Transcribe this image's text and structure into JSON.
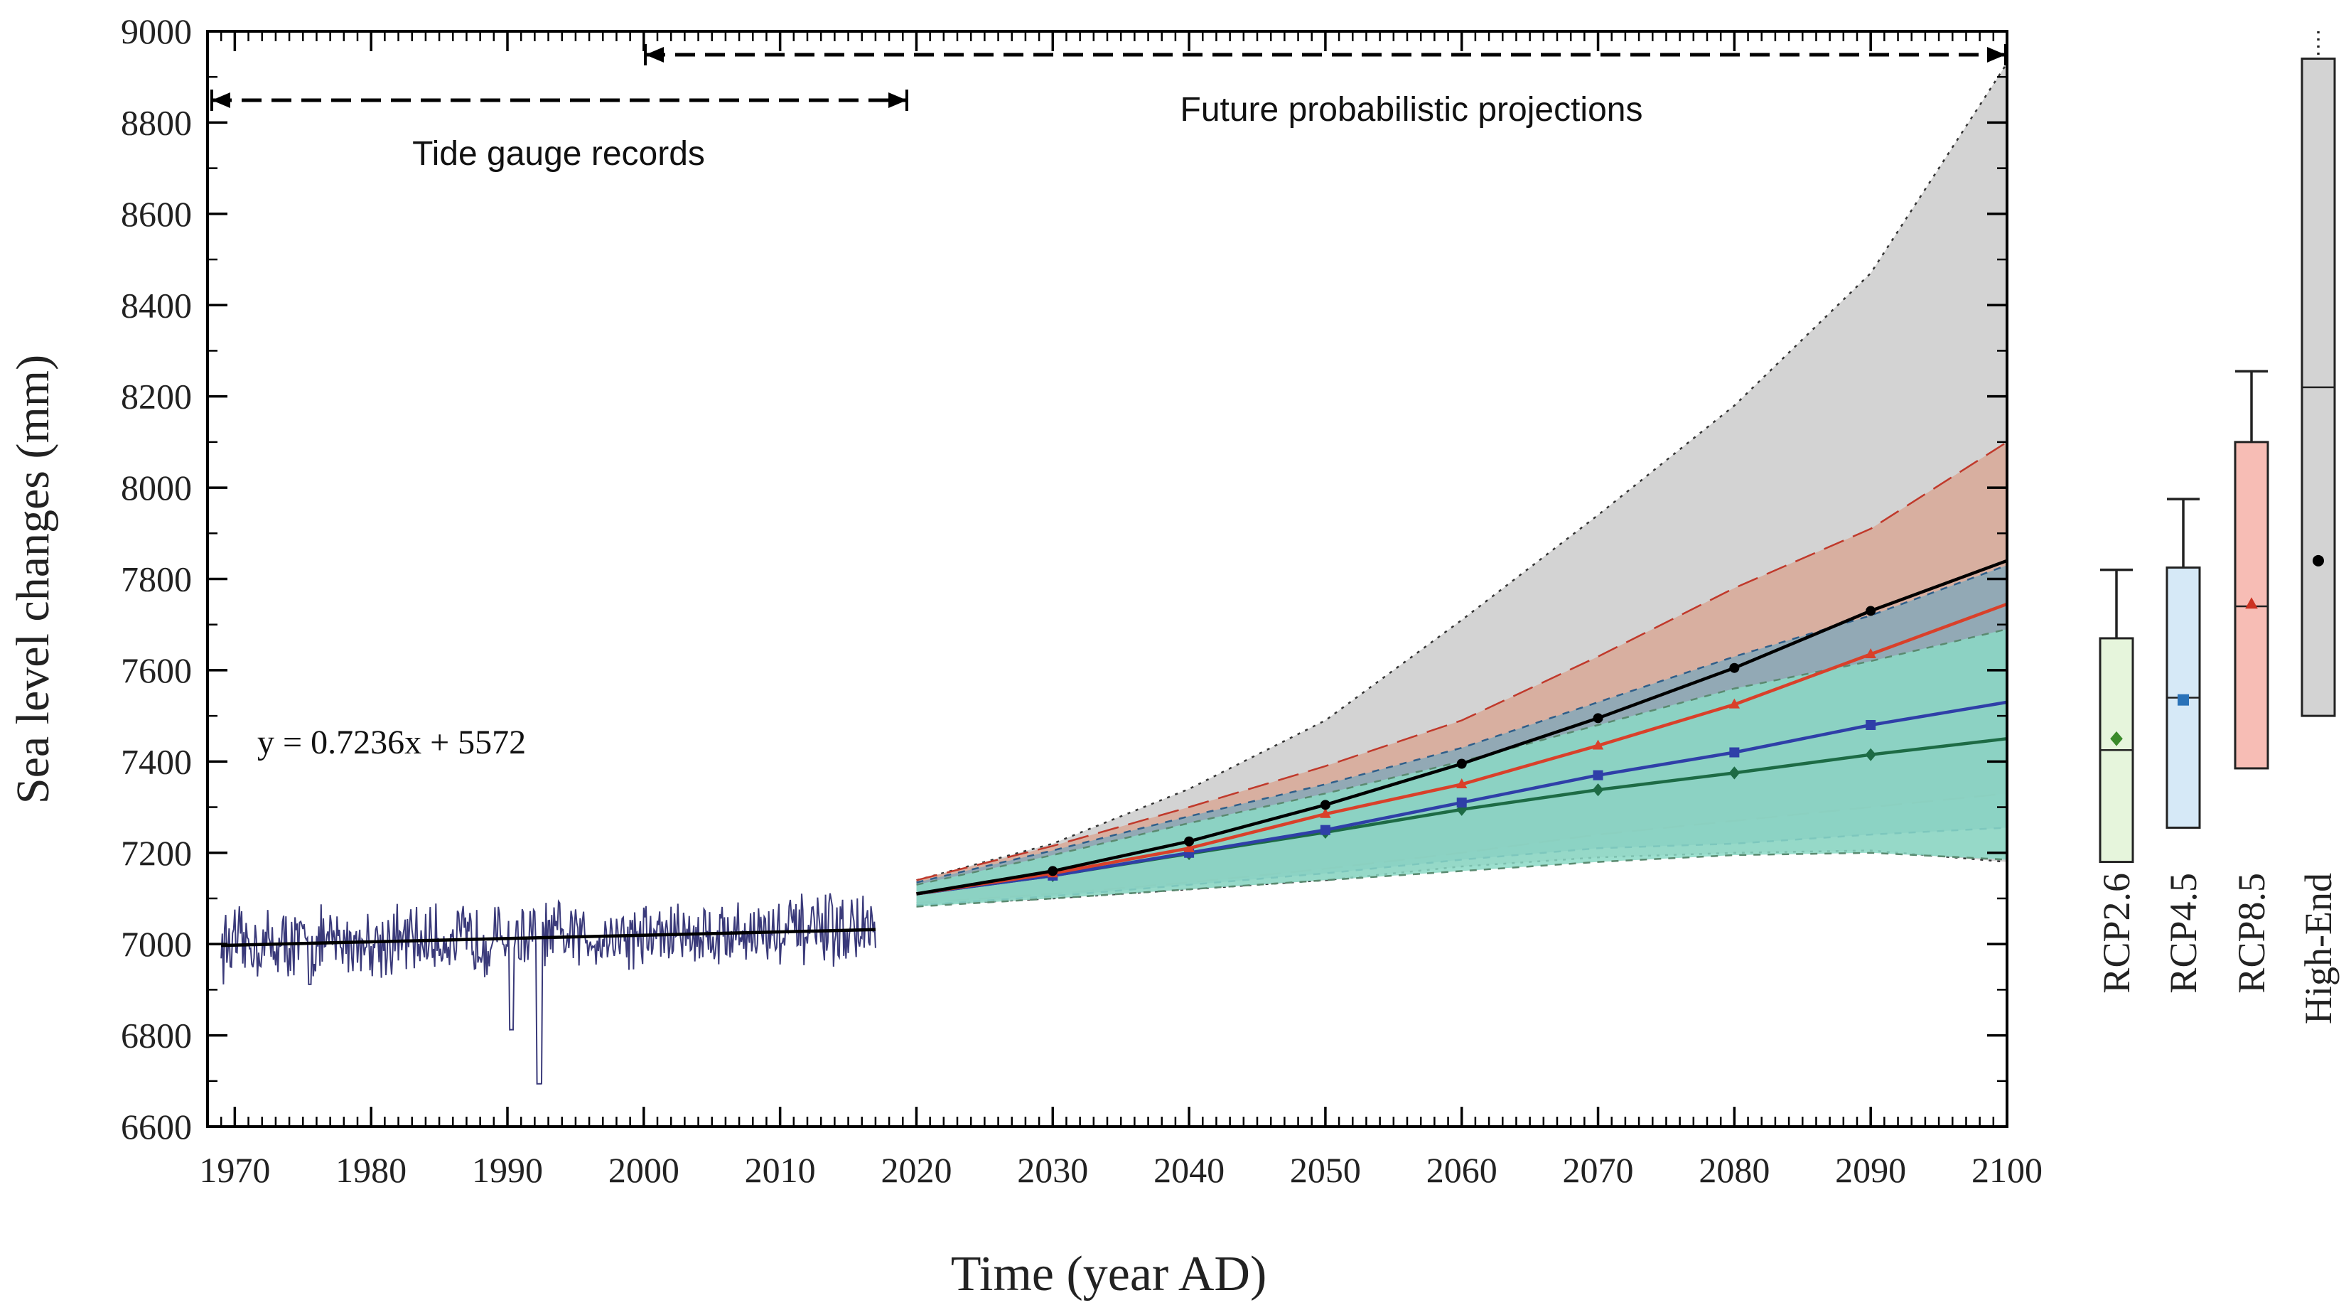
{
  "chart_data": {
    "type": "line",
    "title": "",
    "xlabel": "Time (year AD)",
    "ylabel": "Sea level changes (mm)",
    "xlim": [
      1968,
      2100
    ],
    "ylim": [
      6600,
      9000
    ],
    "xticks": [
      1970,
      1980,
      1990,
      2000,
      2010,
      2020,
      2030,
      2040,
      2050,
      2060,
      2070,
      2080,
      2090,
      2100
    ],
    "yticks": [
      6600,
      6800,
      7000,
      7200,
      7400,
      7600,
      7800,
      8000,
      8200,
      8400,
      8600,
      8800,
      9000
    ],
    "annotations": {
      "tide_gauge": "Tide gauge records",
      "future": "Future probabilistic projections",
      "equation": "y = 0.7236x + 5572"
    },
    "tide_gauge_trend": {
      "slope": 0.7236,
      "intercept_at_1969": 6997,
      "x_range": [
        1969,
        2017
      ]
    },
    "projection_years": [
      2020,
      2030,
      2040,
      2050,
      2060,
      2070,
      2080,
      2090,
      2100
    ],
    "series": [
      {
        "name": "High-End",
        "color": "#000000",
        "values": [
          7110,
          7160,
          7225,
          7305,
          7395,
          7495,
          7605,
          7730,
          7840
        ]
      },
      {
        "name": "RCP8.5",
        "color": "#d9402a",
        "values": [
          7110,
          7155,
          7210,
          7285,
          7350,
          7435,
          7525,
          7635,
          7745
        ]
      },
      {
        "name": "RCP4.5",
        "color": "#2f3fa8",
        "values": [
          7110,
          7150,
          7200,
          7250,
          7310,
          7370,
          7420,
          7480,
          7530
        ]
      },
      {
        "name": "RCP2.6",
        "color": "#1d6b45",
        "values": [
          7110,
          7150,
          7198,
          7245,
          7295,
          7338,
          7375,
          7415,
          7450
        ]
      }
    ],
    "bands": [
      {
        "name": "High-End range",
        "fill": "#d3d3d3",
        "upper": [
          7140,
          7220,
          7340,
          7490,
          7710,
          7940,
          8180,
          8470,
          8930
        ],
        "lower": [
          7085,
          7100,
          7120,
          7140,
          7170,
          7190,
          7200,
          7205,
          7180
        ]
      },
      {
        "name": "RCP8.5 range",
        "fill": "#d8a897",
        "upper": [
          7140,
          7215,
          7300,
          7390,
          7490,
          7630,
          7780,
          7910,
          8100
        ],
        "lower": [
          7090,
          7110,
          7135,
          7165,
          7200,
          7240,
          7270,
          7300,
          7330
        ]
      },
      {
        "name": "RCP4.5 range",
        "fill": "#86a8b8",
        "upper": [
          7135,
          7205,
          7280,
          7350,
          7430,
          7530,
          7630,
          7720,
          7830
        ],
        "lower": [
          7085,
          7105,
          7130,
          7155,
          7185,
          7210,
          7220,
          7240,
          7255
        ]
      },
      {
        "name": "RCP2.6 range",
        "fill": "#8bd9c5",
        "upper": [
          7130,
          7195,
          7265,
          7330,
          7400,
          7480,
          7560,
          7620,
          7690
        ],
        "lower": [
          7082,
          7100,
          7120,
          7140,
          7160,
          7180,
          7195,
          7200,
          7185
        ]
      }
    ],
    "boxplots": [
      {
        "name": "RCP2.6",
        "color": "#3a8a2a",
        "fill": "#e6f5dc",
        "marker": "diamond",
        "low": 7180,
        "q1": 7180,
        "median": 7425,
        "q3": 7670,
        "high": 7820,
        "mean": 7450
      },
      {
        "name": "RCP4.5",
        "color": "#2a72b8",
        "fill": "#d6e9f7",
        "marker": "square",
        "low": 7255,
        "q1": 7255,
        "median": 7540,
        "q3": 7825,
        "high": 7975,
        "mean": 7535
      },
      {
        "name": "RCP8.5",
        "color": "#cc3322",
        "fill": "#f7bdb5",
        "marker": "triangle",
        "low": 7385,
        "q1": 7385,
        "median": 7740,
        "q3": 8100,
        "high": 8255,
        "mean": 7745
      },
      {
        "name": "High-End",
        "color": "#000000",
        "fill": "#d3d3d3",
        "marker": "circle",
        "low": 7500,
        "q1": 7500,
        "median": 8220,
        "q3": 8940,
        "high": 9000,
        "mean": 7840
      }
    ]
  },
  "colors": {
    "observed": "#3a3a7a",
    "trend": "#000000",
    "axis": "#000000"
  }
}
